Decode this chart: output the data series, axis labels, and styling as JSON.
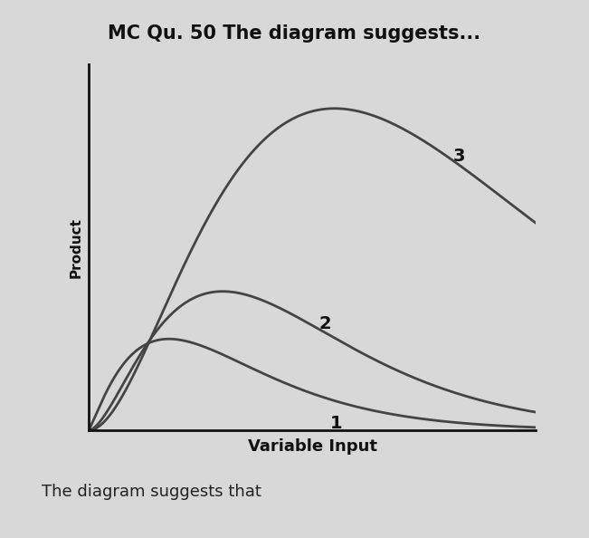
{
  "title": "MC Qu. 50 The diagram suggests...",
  "xlabel": "Variable Input",
  "ylabel": "Product",
  "footer": "The diagram suggests that",
  "background_color": "#d8d8d8",
  "curve_color": "#444444",
  "title_fontsize": 15,
  "xlabel_fontsize": 13,
  "ylabel_fontsize": 11,
  "footer_fontsize": 13,
  "label_num_fontsize": 14
}
